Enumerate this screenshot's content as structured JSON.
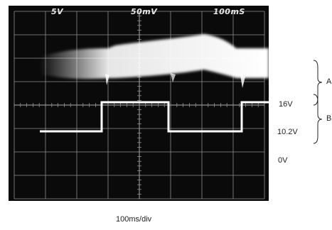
{
  "scope_header": {
    "ch1_scale": "5V",
    "ch2_scale": "50mV",
    "timebase": "100mS"
  },
  "labels": {
    "level_high": "16V",
    "level_low": "10.2V",
    "level_zero": "0V",
    "trace_a": "A",
    "trace_b": "B"
  },
  "footer": {
    "time_per_div": "100ms/div"
  },
  "colors": {
    "screen": "#0a0a0a",
    "grid": "#8f8f8f",
    "trace": "#ffffff",
    "text": "#222222"
  },
  "chart_data": {
    "type": "line",
    "xlabel": "100ms/div",
    "series": [
      {
        "name": "B",
        "x": [
          0,
          87,
          87,
          181,
          181,
          284,
          284,
          350
        ],
        "y": [
          10.2,
          10.2,
          16,
          16,
          10.2,
          10.2,
          16,
          16
        ]
      }
    ]
  }
}
